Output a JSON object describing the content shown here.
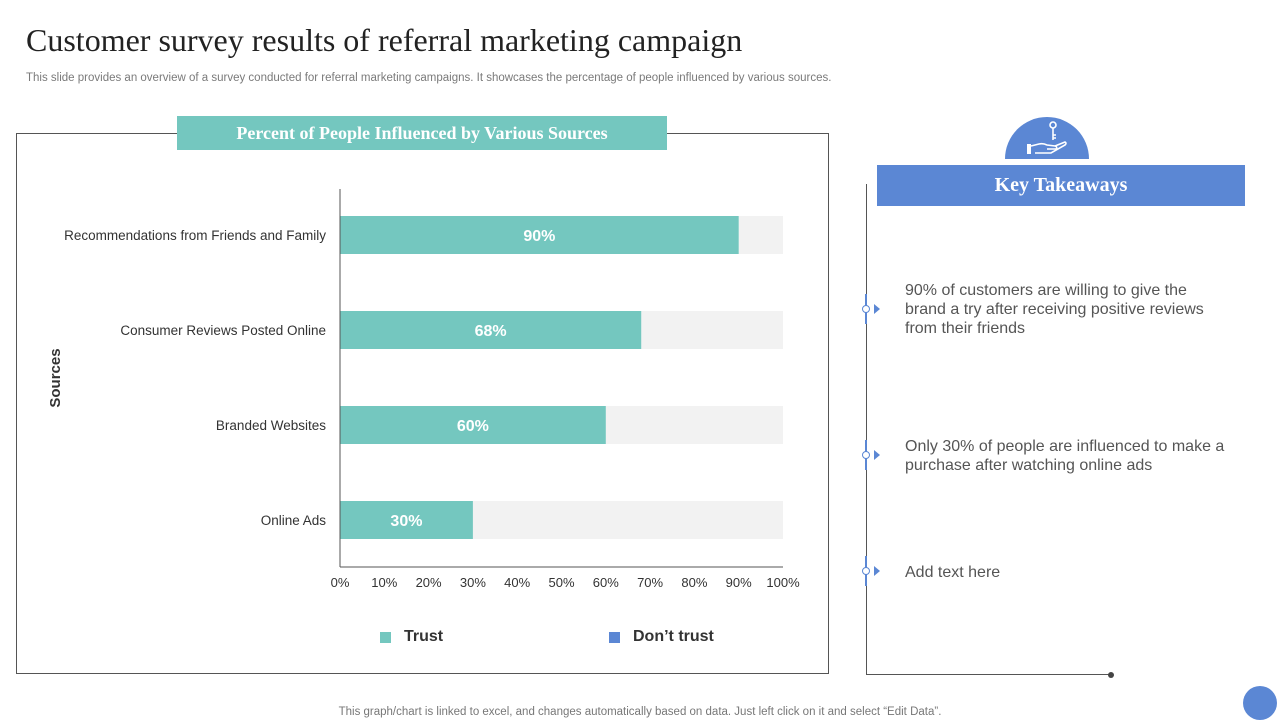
{
  "page": {
    "title": "Customer survey results of referral marketing campaign",
    "subtitle": "This slide provides an overview of a survey conducted for referral marketing campaigns. It showcases the percentage of people influenced by various sources.",
    "footnote": "This graph/chart is linked to excel,  and changes automatically based on data. Just left click on it and select “Edit Data”."
  },
  "colors": {
    "trust": "#74c7bf",
    "dont_trust": "#f2f2f2",
    "dont_trust_legend": "#5b87d4",
    "accent_blue": "#5b87d4",
    "bar_label": "#ffffff"
  },
  "chart_data": {
    "type": "bar",
    "orientation": "horizontal",
    "stacked": true,
    "title": "Percent of People Influenced by Various Sources",
    "ylabel": "Sources",
    "xlabel": "",
    "categories": [
      "Recommendations from Friends and Family",
      "Consumer Reviews Posted Online",
      "Branded Websites",
      "Online Ads"
    ],
    "series": [
      {
        "name": "Trust",
        "values": [
          90,
          68,
          60,
          30
        ]
      },
      {
        "name": "Don’t trust",
        "values": [
          10,
          32,
          40,
          70
        ]
      }
    ],
    "data_labels": [
      "90%",
      "68%",
      "60%",
      "30%"
    ],
    "xlim": [
      0,
      100
    ],
    "x_ticks": [
      "0%",
      "10%",
      "20%",
      "30%",
      "40%",
      "50%",
      "60%",
      "70%",
      "80%",
      "90%",
      "100%"
    ],
    "grid": false,
    "legend_position": "bottom"
  },
  "key_takeaways": {
    "header": "Key Takeaways",
    "icon": "hand-key-icon",
    "items": [
      "90% of customers are willing to give the brand a try after receiving positive reviews from their friends",
      "Only 30% of people are influenced to make a purchase after watching online ads",
      "Add text here"
    ]
  }
}
